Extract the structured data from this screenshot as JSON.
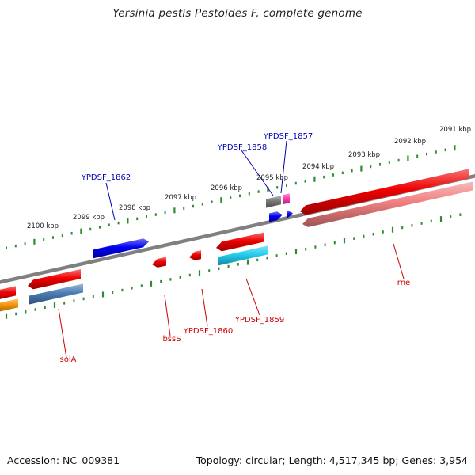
{
  "title": "Yersinia pestis Pestoides F, complete genome",
  "footer": {
    "accession": "Accession: NC_009381",
    "summary": "Topology: circular; Length: 4,517,345 bp; Genes: 3,954"
  },
  "colors": {
    "backbone": "#808080",
    "ticks": "#2e8b2e",
    "label_forward": "#0000b0",
    "label_reverse": "#cc0000"
  },
  "scale_labels": [
    "2100 kbp",
    "2099 kbp",
    "2098 kbp",
    "2097 kbp",
    "2096 kbp",
    "2095 kbp",
    "2094 kbp",
    "2093 kbp",
    "2092 kbp",
    "2091 kbp"
  ],
  "gene_labels": [
    {
      "key": "ypdsf_1857",
      "text": "YPDSF_1857",
      "strand": "forward"
    },
    {
      "key": "ypdsf_1858",
      "text": "YPDSF_1858",
      "strand": "forward"
    },
    {
      "key": "ypdsf_1862",
      "text": "YPDSF_1862",
      "strand": "forward"
    },
    {
      "key": "rne",
      "text": "rne",
      "strand": "reverse"
    },
    {
      "key": "ypdsf_1859",
      "text": "YPDSF_1859",
      "strand": "reverse"
    },
    {
      "key": "ypdsf_1860",
      "text": "YPDSF_1860",
      "strand": "reverse"
    },
    {
      "key": "bsss",
      "text": "bssS",
      "strand": "reverse"
    },
    {
      "key": "sola",
      "text": "solA",
      "strand": "reverse"
    }
  ],
  "features": [
    {
      "key": "f_1862",
      "color": "#0000ee",
      "strand": "forward"
    },
    {
      "key": "f_1858_gray",
      "color": "#777777",
      "strand": "forward"
    },
    {
      "key": "f_1858_blue",
      "color": "#0000ee",
      "strand": "forward"
    },
    {
      "key": "f_1857_pink",
      "color": "#ff3cb4",
      "strand": "forward"
    },
    {
      "key": "f_1857_blue",
      "color": "#0000ee",
      "strand": "forward"
    },
    {
      "key": "f_rne",
      "color": "#ee0000",
      "strand": "reverse"
    },
    {
      "key": "f_rne_sub",
      "color": "#f08080",
      "strand": "reverse"
    },
    {
      "key": "f_1859",
      "color": "#ee0000",
      "strand": "reverse"
    },
    {
      "key": "f_1859_sub",
      "color": "#22ccee",
      "strand": "reverse"
    },
    {
      "key": "f_1860",
      "color": "#ee0000",
      "strand": "reverse"
    },
    {
      "key": "f_bsss",
      "color": "#ee0000",
      "strand": "reverse"
    },
    {
      "key": "f_sola",
      "color": "#ee0000",
      "strand": "reverse"
    },
    {
      "key": "f_sola_sub",
      "color": "#4a7db5",
      "strand": "reverse"
    },
    {
      "key": "f_edge_red",
      "color": "#ee0000",
      "strand": "reverse"
    },
    {
      "key": "f_edge_orange",
      "color": "#f5960a",
      "strand": "reverse"
    }
  ]
}
